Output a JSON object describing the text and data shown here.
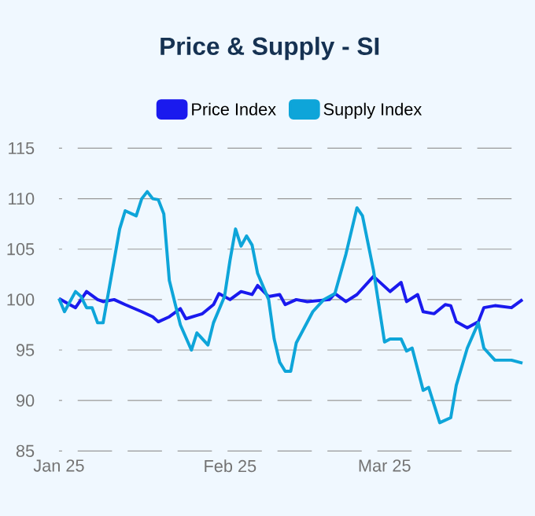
{
  "chart_data": {
    "type": "line",
    "title": "Price & Supply - SI",
    "xlim": [
      "2025-01-01",
      "2025-03-26"
    ],
    "xticks": [
      {
        "value": "2025-01-01",
        "label": "Jan 25"
      },
      {
        "value": "2025-02-01",
        "label": "Feb 25"
      },
      {
        "value": "2025-03-01",
        "label": "Mar 25"
      }
    ],
    "ylim": [
      85,
      115
    ],
    "yticks": [
      85,
      90,
      95,
      100,
      105,
      110,
      115
    ],
    "grid": "y",
    "legend": "top",
    "series": [
      {
        "name": "Price Index",
        "color": "#1a1aee",
        "x": [
          "2025-01-01",
          "2025-01-02",
          "2025-01-04",
          "2025-01-06",
          "2025-01-08",
          "2025-01-09",
          "2025-01-11",
          "2025-01-13",
          "2025-01-16",
          "2025-01-18",
          "2025-01-19",
          "2025-01-21",
          "2025-01-23",
          "2025-01-24",
          "2025-01-27",
          "2025-01-29",
          "2025-01-30",
          "2025-02-01",
          "2025-02-03",
          "2025-02-05",
          "2025-02-06",
          "2025-02-08",
          "2025-02-10",
          "2025-02-11",
          "2025-02-13",
          "2025-02-15",
          "2025-02-19",
          "2025-02-20",
          "2025-02-22",
          "2025-02-24",
          "2025-02-27",
          "2025-03-02",
          "2025-03-04",
          "2025-03-05",
          "2025-03-07",
          "2025-03-08",
          "2025-03-10",
          "2025-03-12",
          "2025-03-13",
          "2025-03-14",
          "2025-03-16",
          "2025-03-18",
          "2025-03-19",
          "2025-03-21",
          "2025-03-24",
          "2025-03-26"
        ],
        "values": [
          100.1,
          99.8,
          99.2,
          100.8,
          100,
          99.8,
          100,
          99.5,
          98.8,
          98.3,
          97.8,
          98.3,
          99.1,
          98.1,
          98.6,
          99.5,
          100.6,
          100,
          100.8,
          100.5,
          101.4,
          100.3,
          100.5,
          99.5,
          100,
          99.8,
          100,
          100.6,
          99.8,
          100.5,
          102.3,
          100.8,
          101.7,
          99.8,
          100.5,
          98.8,
          98.6,
          99.5,
          99.4,
          97.8,
          97.2,
          97.8,
          99.2,
          99.4,
          99.2,
          100
        ]
      },
      {
        "name": "Supply Index",
        "color": "#0ea5d9",
        "x": [
          "2025-01-01",
          "2025-01-02",
          "2025-01-04",
          "2025-01-05",
          "2025-01-06",
          "2025-01-07",
          "2025-01-08",
          "2025-01-09",
          "2025-01-10",
          "2025-01-12",
          "2025-01-13",
          "2025-01-15",
          "2025-01-16",
          "2025-01-17",
          "2025-01-18",
          "2025-01-19",
          "2025-01-20",
          "2025-01-21",
          "2025-01-23",
          "2025-01-25",
          "2025-01-26",
          "2025-01-28",
          "2025-01-29",
          "2025-01-31",
          "2025-02-01",
          "2025-02-02",
          "2025-02-03",
          "2025-02-04",
          "2025-02-05",
          "2025-02-06",
          "2025-02-08",
          "2025-02-09",
          "2025-02-10",
          "2025-02-11",
          "2025-02-12",
          "2025-02-13",
          "2025-02-16",
          "2025-02-18",
          "2025-02-20",
          "2025-02-22",
          "2025-02-24",
          "2025-02-25",
          "2025-02-27",
          "2025-03-01",
          "2025-03-02",
          "2025-03-04",
          "2025-03-05",
          "2025-03-06",
          "2025-03-08",
          "2025-03-09",
          "2025-03-11",
          "2025-03-13",
          "2025-03-14",
          "2025-03-16",
          "2025-03-18",
          "2025-03-19",
          "2025-03-21",
          "2025-03-24",
          "2025-03-26"
        ],
        "values": [
          100.1,
          98.8,
          100.8,
          100.3,
          99.2,
          99.2,
          97.7,
          97.7,
          100.8,
          107,
          108.8,
          108.3,
          110,
          110.7,
          110,
          109.9,
          108.5,
          101.9,
          97.5,
          95,
          96.7,
          95.5,
          97.7,
          100.3,
          103.9,
          107,
          105.3,
          106.3,
          105.4,
          102.6,
          100,
          96.1,
          93.8,
          92.9,
          92.9,
          95.7,
          98.8,
          100,
          100.6,
          104.5,
          109.1,
          108.3,
          102.9,
          95.8,
          96.1,
          96.1,
          94.9,
          95.2,
          91,
          91.3,
          87.8,
          88.3,
          91.5,
          95.2,
          97.7,
          95.2,
          94,
          94,
          93.7
        ]
      }
    ]
  }
}
